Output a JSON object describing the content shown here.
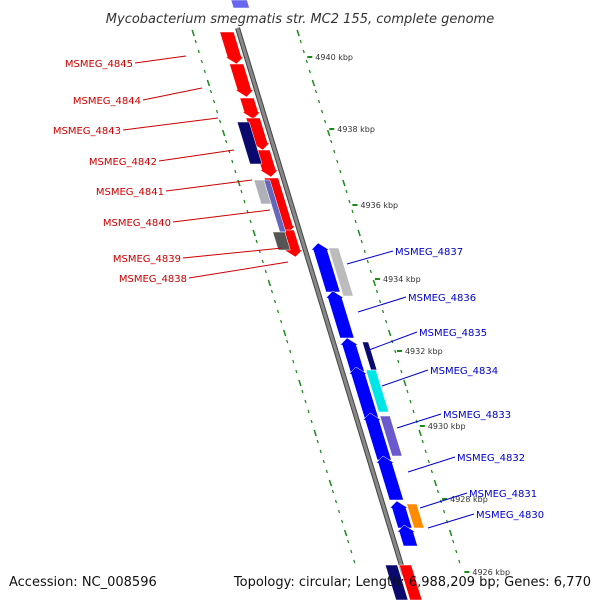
{
  "title": "Mycobacterium smegmatis str. MC2 155, complete genome",
  "footer": {
    "accession": "Accession: NC_008596",
    "topology": "Topology: circular; Length: 6,988,209 bp; Genes: 6,770"
  },
  "colors": {
    "backbone": "#888888",
    "tick": "#1a8a1a",
    "reverse_label": "#cc0000",
    "forward_label": "#0000cc"
  },
  "kbp_labels": [
    "4940 kbp",
    "4938 kbp",
    "4936 kbp",
    "4934 kbp",
    "4932 kbp",
    "4930 kbp",
    "4928 kbp",
    "4926 kbp"
  ],
  "genes": [
    {
      "id": "MSMEG_4845",
      "strand": "reverse"
    },
    {
      "id": "MSMEG_4844",
      "strand": "reverse"
    },
    {
      "id": "MSMEG_4843",
      "strand": "reverse"
    },
    {
      "id": "MSMEG_4842",
      "strand": "reverse"
    },
    {
      "id": "MSMEG_4841",
      "strand": "reverse"
    },
    {
      "id": "MSMEG_4840",
      "strand": "reverse"
    },
    {
      "id": "MSMEG_4839",
      "strand": "reverse"
    },
    {
      "id": "MSMEG_4838",
      "strand": "reverse"
    },
    {
      "id": "MSMEG_4837",
      "strand": "forward"
    },
    {
      "id": "MSMEG_4836",
      "strand": "forward"
    },
    {
      "id": "MSMEG_4835",
      "strand": "forward"
    },
    {
      "id": "MSMEG_4834",
      "strand": "forward"
    },
    {
      "id": "MSMEG_4833",
      "strand": "forward"
    },
    {
      "id": "MSMEG_4832",
      "strand": "forward"
    },
    {
      "id": "MSMEG_4831",
      "strand": "forward"
    },
    {
      "id": "MSMEG_4830",
      "strand": "forward"
    }
  ]
}
